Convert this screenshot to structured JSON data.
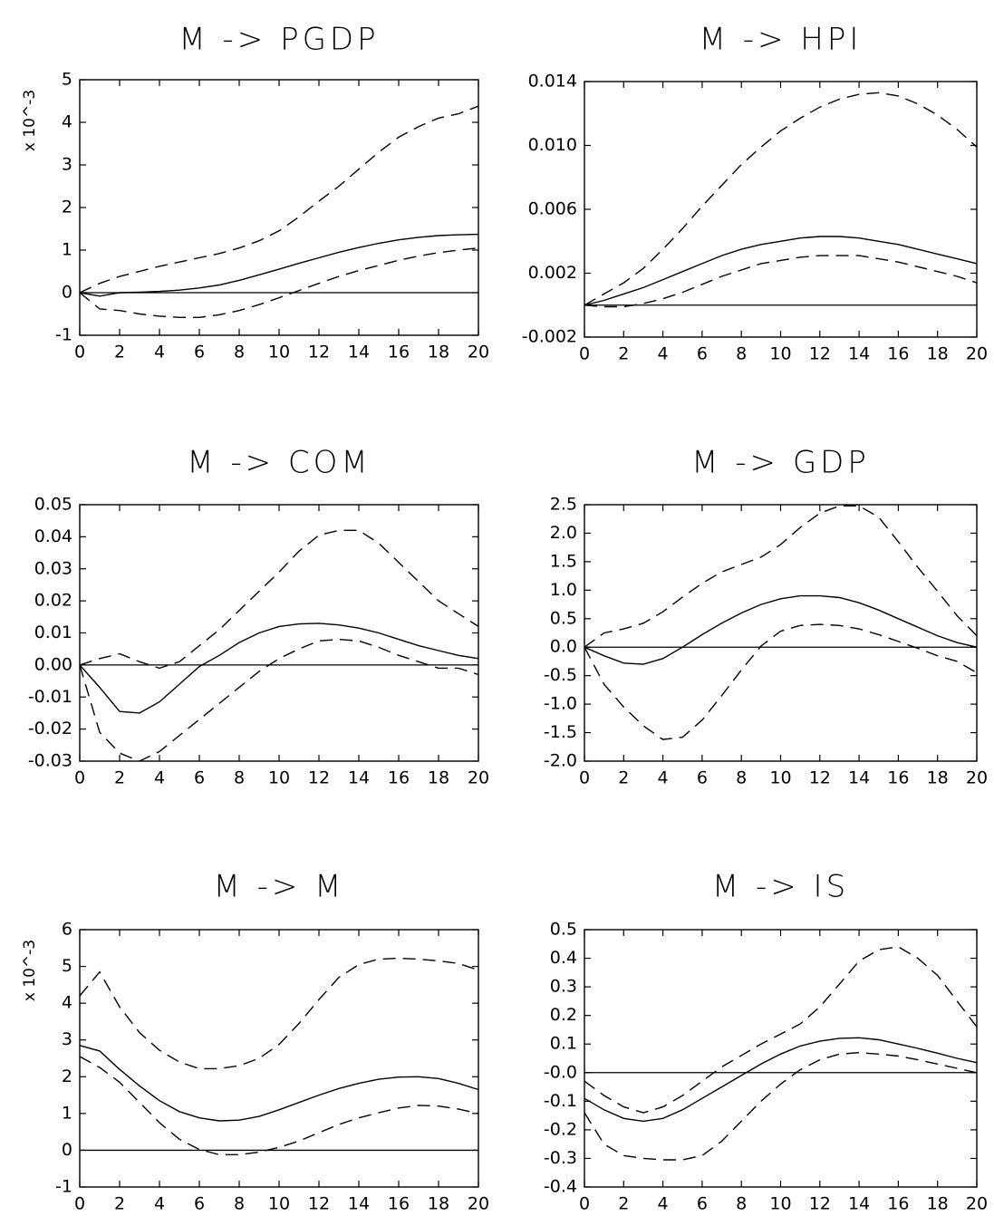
{
  "chart_data": [
    {
      "type": "line",
      "title": "M  ->  PGDP",
      "scale_label": "x 10^-3",
      "x": [
        0,
        1,
        2,
        3,
        4,
        5,
        6,
        7,
        8,
        9,
        10,
        11,
        12,
        13,
        14,
        15,
        16,
        17,
        18,
        19,
        20
      ],
      "xlim": [
        0,
        20
      ],
      "ylim": [
        -1,
        5
      ],
      "x_ticks": [
        0,
        2,
        4,
        6,
        8,
        10,
        12,
        14,
        16,
        18,
        20
      ],
      "y_ticks": [
        -1,
        0,
        1,
        2,
        3,
        4,
        5
      ],
      "y_tick_labels": [
        "-1",
        "0",
        "1",
        "2",
        "3",
        "4",
        "5"
      ],
      "zero_line": true,
      "series": [
        {
          "role": "median",
          "style": "solid",
          "values": [
            0,
            -0.08,
            0,
            0.01,
            0.03,
            0.06,
            0.11,
            0.18,
            0.29,
            0.42,
            0.55,
            0.69,
            0.82,
            0.95,
            1.06,
            1.16,
            1.24,
            1.3,
            1.34,
            1.36,
            1.37
          ]
        },
        {
          "role": "upper",
          "style": "dashed",
          "values": [
            0,
            0.22,
            0.38,
            0.5,
            0.62,
            0.72,
            0.82,
            0.92,
            1.05,
            1.22,
            1.45,
            1.78,
            2.15,
            2.5,
            2.9,
            3.3,
            3.65,
            3.9,
            4.1,
            4.2,
            4.38
          ]
        },
        {
          "role": "lower",
          "style": "dashed",
          "values": [
            0,
            -0.38,
            -0.42,
            -0.5,
            -0.55,
            -0.58,
            -0.58,
            -0.52,
            -0.42,
            -0.28,
            -0.12,
            0.05,
            0.22,
            0.38,
            0.52,
            0.64,
            0.76,
            0.86,
            0.94,
            1.0,
            1.05
          ]
        }
      ]
    },
    {
      "type": "line",
      "title": "M  ->  HPI",
      "x": [
        0,
        1,
        2,
        3,
        4,
        5,
        6,
        7,
        8,
        9,
        10,
        11,
        12,
        13,
        14,
        15,
        16,
        17,
        18,
        19,
        20
      ],
      "xlim": [
        0,
        20
      ],
      "ylim": [
        -0.002,
        0.014
      ],
      "x_ticks": [
        0,
        2,
        4,
        6,
        8,
        10,
        12,
        14,
        16,
        18,
        20
      ],
      "y_ticks": [
        -0.002,
        0.002,
        0.006,
        0.01,
        0.014
      ],
      "y_tick_labels": [
        "-0.002",
        "0.002",
        "0.006",
        "0.010",
        "0.014"
      ],
      "zero_line": true,
      "series": [
        {
          "role": "median",
          "style": "solid",
          "values": [
            0,
            0.0003,
            0.0007,
            0.0011,
            0.0016,
            0.0021,
            0.0026,
            0.0031,
            0.0035,
            0.0038,
            0.004,
            0.0042,
            0.0043,
            0.0043,
            0.0042,
            0.004,
            0.0038,
            0.0035,
            0.0032,
            0.0029,
            0.0026
          ]
        },
        {
          "role": "upper",
          "style": "dashed",
          "values": [
            0,
            0.0007,
            0.0014,
            0.0023,
            0.0035,
            0.0048,
            0.0062,
            0.0075,
            0.0088,
            0.0099,
            0.0109,
            0.0117,
            0.0124,
            0.0129,
            0.0132,
            0.0133,
            0.0131,
            0.0126,
            0.0119,
            0.011,
            0.0099
          ]
        },
        {
          "role": "lower",
          "style": "dashed",
          "values": [
            0,
            -0.0001,
            -0.0001,
            0.0001,
            0.0004,
            0.0008,
            0.0013,
            0.0018,
            0.0022,
            0.0026,
            0.0028,
            0.003,
            0.0031,
            0.0031,
            0.0031,
            0.0029,
            0.0027,
            0.0024,
            0.0021,
            0.0018,
            0.0014
          ]
        }
      ]
    },
    {
      "type": "line",
      "title": "M  ->  COM",
      "x": [
        0,
        1,
        2,
        3,
        4,
        5,
        6,
        7,
        8,
        9,
        10,
        11,
        12,
        13,
        14,
        15,
        16,
        17,
        18,
        19,
        20
      ],
      "xlim": [
        0,
        20
      ],
      "ylim": [
        -0.03,
        0.05
      ],
      "x_ticks": [
        0,
        2,
        4,
        6,
        8,
        10,
        12,
        14,
        16,
        18,
        20
      ],
      "y_ticks": [
        -0.03,
        -0.02,
        -0.01,
        0,
        0.01,
        0.02,
        0.03,
        0.04,
        0.05
      ],
      "y_tick_labels": [
        "-0.03",
        "-0.02",
        "-0.01",
        "0.00",
        "0.01",
        "0.02",
        "0.03",
        "0.04",
        "0.05"
      ],
      "zero_line": true,
      "series": [
        {
          "role": "median",
          "style": "solid",
          "values": [
            0,
            -0.007,
            -0.0145,
            -0.015,
            -0.0115,
            -0.006,
            -0.0005,
            0.003,
            0.007,
            0.01,
            0.012,
            0.0128,
            0.013,
            0.0125,
            0.0115,
            0.01,
            0.008,
            0.006,
            0.0045,
            0.003,
            0.002
          ]
        },
        {
          "role": "upper",
          "style": "dashed",
          "values": [
            0,
            0.002,
            0.0035,
            0.001,
            -0.001,
            0.001,
            0.006,
            0.011,
            0.017,
            0.023,
            0.029,
            0.0355,
            0.0405,
            0.042,
            0.042,
            0.038,
            0.032,
            0.026,
            0.02,
            0.016,
            0.012
          ]
        },
        {
          "role": "lower",
          "style": "dashed",
          "values": [
            0,
            -0.021,
            -0.0275,
            -0.03,
            -0.027,
            -0.022,
            -0.017,
            -0.012,
            -0.007,
            -0.002,
            0.002,
            0.005,
            0.0075,
            0.008,
            0.0075,
            0.0055,
            0.003,
            0.001,
            -0.001,
            -0.001,
            -0.003
          ]
        }
      ]
    },
    {
      "type": "line",
      "title": "M  ->  GDP",
      "x": [
        0,
        1,
        2,
        3,
        4,
        5,
        6,
        7,
        8,
        9,
        10,
        11,
        12,
        13,
        14,
        15,
        16,
        17,
        18,
        19,
        20
      ],
      "xlim": [
        0,
        20
      ],
      "ylim": [
        -2.0,
        2.5
      ],
      "x_ticks": [
        0,
        2,
        4,
        6,
        8,
        10,
        12,
        14,
        16,
        18,
        20
      ],
      "y_ticks": [
        -2.0,
        -1.5,
        -1.0,
        -0.5,
        0,
        0.5,
        1.0,
        1.5,
        2.0,
        2.5
      ],
      "y_tick_labels": [
        "-2.0",
        "-1.5",
        "-1.0",
        "-0.5",
        "0.0",
        "0.5",
        "1.0",
        "1.5",
        "2.0",
        "2.5"
      ],
      "zero_line": true,
      "series": [
        {
          "role": "median",
          "style": "solid",
          "values": [
            0,
            -0.15,
            -0.28,
            -0.3,
            -0.2,
            0.0,
            0.22,
            0.42,
            0.6,
            0.75,
            0.85,
            0.9,
            0.9,
            0.87,
            0.78,
            0.65,
            0.5,
            0.35,
            0.2,
            0.08,
            0.0
          ]
        },
        {
          "role": "upper",
          "style": "dashed",
          "values": [
            0,
            0.25,
            0.32,
            0.42,
            0.62,
            0.88,
            1.12,
            1.32,
            1.45,
            1.58,
            1.8,
            2.1,
            2.35,
            2.48,
            2.48,
            2.28,
            1.85,
            1.4,
            0.98,
            0.55,
            0.2
          ]
        },
        {
          "role": "lower",
          "style": "dashed",
          "values": [
            0,
            -0.65,
            -1.05,
            -1.38,
            -1.62,
            -1.58,
            -1.28,
            -0.85,
            -0.4,
            0.02,
            0.28,
            0.38,
            0.4,
            0.38,
            0.32,
            0.22,
            0.1,
            -0.02,
            -0.15,
            -0.25,
            -0.45
          ]
        }
      ]
    },
    {
      "type": "line",
      "title": "M  ->  M",
      "scale_label": "x 10^-3",
      "x": [
        0,
        1,
        2,
        3,
        4,
        5,
        6,
        7,
        8,
        9,
        10,
        11,
        12,
        13,
        14,
        15,
        16,
        17,
        18,
        19,
        20
      ],
      "xlim": [
        0,
        20
      ],
      "ylim": [
        -1,
        6
      ],
      "x_ticks": [
        0,
        2,
        4,
        6,
        8,
        10,
        12,
        14,
        16,
        18,
        20
      ],
      "y_ticks": [
        -1,
        0,
        1,
        2,
        3,
        4,
        5,
        6
      ],
      "y_tick_labels": [
        "-1",
        "0",
        "1",
        "2",
        "3",
        "4",
        "5",
        "6"
      ],
      "zero_line": true,
      "series": [
        {
          "role": "median",
          "style": "solid",
          "values": [
            2.85,
            2.7,
            2.2,
            1.75,
            1.35,
            1.05,
            0.88,
            0.8,
            0.82,
            0.92,
            1.1,
            1.3,
            1.5,
            1.68,
            1.82,
            1.93,
            1.99,
            2.0,
            1.95,
            1.82,
            1.65
          ]
        },
        {
          "role": "upper",
          "style": "dashed",
          "values": [
            4.2,
            4.85,
            3.9,
            3.2,
            2.72,
            2.4,
            2.22,
            2.22,
            2.3,
            2.5,
            2.88,
            3.45,
            4.1,
            4.7,
            5.05,
            5.2,
            5.22,
            5.2,
            5.15,
            5.08,
            4.9
          ]
        },
        {
          "role": "lower",
          "style": "dashed",
          "values": [
            2.55,
            2.25,
            1.85,
            1.3,
            0.75,
            0.3,
            0.02,
            -0.12,
            -0.12,
            -0.05,
            0.08,
            0.25,
            0.48,
            0.7,
            0.88,
            1.02,
            1.15,
            1.22,
            1.2,
            1.12,
            1.0
          ]
        }
      ]
    },
    {
      "type": "line",
      "title": "M  ->  IS",
      "x": [
        0,
        1,
        2,
        3,
        4,
        5,
        6,
        7,
        8,
        9,
        10,
        11,
        12,
        13,
        14,
        15,
        16,
        17,
        18,
        19,
        20
      ],
      "xlim": [
        0,
        20
      ],
      "ylim": [
        -0.4,
        0.5
      ],
      "x_ticks": [
        0,
        2,
        4,
        6,
        8,
        10,
        12,
        14,
        16,
        18,
        20
      ],
      "y_ticks": [
        -0.4,
        -0.3,
        -0.2,
        -0.1,
        0,
        0.1,
        0.2,
        0.3,
        0.4,
        0.5
      ],
      "y_tick_labels": [
        "-0.4",
        "-0.3",
        "-0.2",
        "-0.1",
        "-0.0",
        "0.1",
        "0.2",
        "0.3",
        "0.4",
        "0.5"
      ],
      "zero_line": true,
      "series": [
        {
          "role": "median",
          "style": "solid",
          "values": [
            -0.09,
            -0.13,
            -0.16,
            -0.17,
            -0.16,
            -0.13,
            -0.09,
            -0.05,
            -0.01,
            0.03,
            0.065,
            0.093,
            0.11,
            0.12,
            0.122,
            0.115,
            0.1,
            0.085,
            0.068,
            0.05,
            0.035
          ]
        },
        {
          "role": "upper",
          "style": "dashed",
          "values": [
            -0.03,
            -0.08,
            -0.12,
            -0.14,
            -0.12,
            -0.08,
            -0.03,
            0.02,
            0.06,
            0.1,
            0.135,
            0.17,
            0.23,
            0.31,
            0.39,
            0.43,
            0.44,
            0.4,
            0.34,
            0.25,
            0.16
          ]
        },
        {
          "role": "lower",
          "style": "dashed",
          "values": [
            -0.14,
            -0.25,
            -0.29,
            -0.3,
            -0.305,
            -0.305,
            -0.29,
            -0.24,
            -0.17,
            -0.1,
            -0.04,
            0.01,
            0.045,
            0.065,
            0.07,
            0.065,
            0.058,
            0.045,
            0.03,
            0.015,
            0.0
          ]
        }
      ]
    }
  ]
}
